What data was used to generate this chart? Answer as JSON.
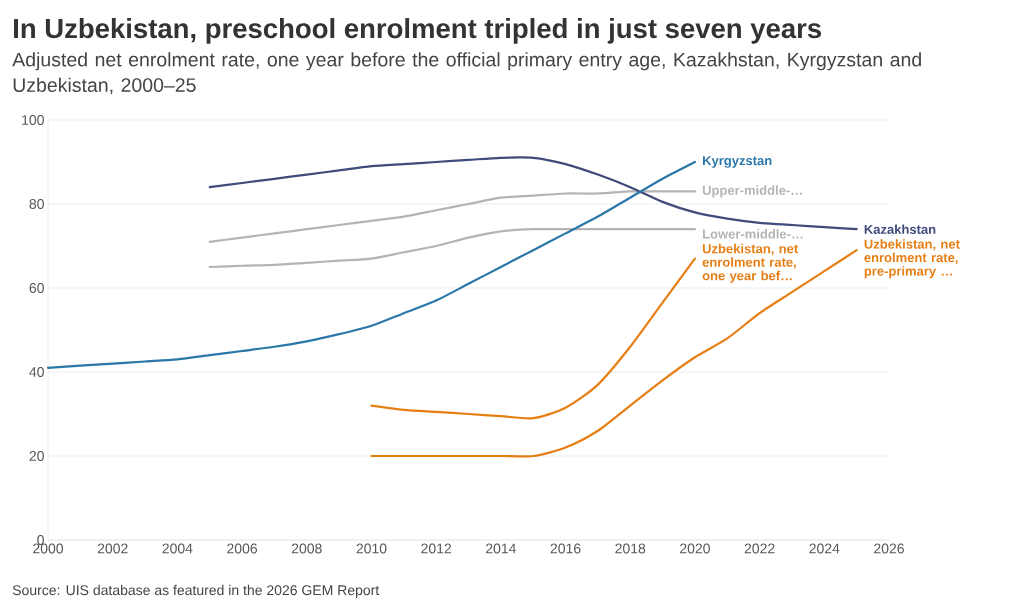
{
  "chart_data": {
    "type": "line",
    "title": "In Uzbekistan, preschool enrolment tripled in just seven years",
    "subtitle": "Adjusted net enrolment rate, one year before the official primary entry age, Kazakhstan, Kyrgyzstan and Uzbekistan, 2000–25",
    "annotations": [
      "Source: UIS database as featured in the 2026 GEM Report"
    ],
    "xlim": [
      2000,
      2026
    ],
    "xticks": [
      2000,
      2002,
      2004,
      2006,
      2008,
      2010,
      2012,
      2014,
      2016,
      2018,
      2020,
      2022,
      2024,
      2026
    ],
    "ylim": [
      0,
      100
    ],
    "yticks": [
      0,
      20,
      40,
      60,
      80,
      100
    ],
    "grid": "y",
    "series": [
      {
        "name": "Upper-middle-…",
        "color": "#b4b4b4",
        "x": [
          2005,
          2006,
          2007,
          2008,
          2009,
          2010,
          2011,
          2012,
          2013,
          2014,
          2015,
          2016,
          2017,
          2018,
          2019,
          2020
        ],
        "values": [
          71,
          72,
          73,
          74,
          75,
          76,
          77,
          78.5,
          80,
          81.5,
          82,
          82.5,
          82.5,
          83,
          83,
          83
        ]
      },
      {
        "name": "Lower-middle-…",
        "color": "#b4b4b4",
        "x": [
          2005,
          2006,
          2007,
          2008,
          2009,
          2010,
          2011,
          2012,
          2013,
          2014,
          2015,
          2016,
          2017,
          2018,
          2019,
          2020
        ],
        "values": [
          65,
          65.3,
          65.5,
          66,
          66.5,
          67,
          68.5,
          70,
          72,
          73.5,
          74,
          74,
          74,
          74,
          74,
          74
        ]
      },
      {
        "name": "Kazakhstan",
        "color": "#404a7b",
        "x": [
          2005,
          2006,
          2007,
          2008,
          2009,
          2010,
          2011,
          2012,
          2013,
          2014,
          2015,
          2016,
          2017,
          2018,
          2019,
          2020,
          2021,
          2022,
          2023,
          2024,
          2025
        ],
        "values": [
          84,
          85,
          86,
          87,
          88,
          89,
          89.5,
          90,
          90.5,
          91,
          91,
          89.5,
          87,
          84,
          80.5,
          78,
          76.5,
          75.5,
          75,
          74.5,
          74
        ]
      },
      {
        "name": "Kyrgyzstan",
        "color": "#2a77a8",
        "x": [
          2000,
          2001,
          2002,
          2003,
          2004,
          2005,
          2006,
          2007,
          2008,
          2009,
          2010,
          2011,
          2012,
          2013,
          2014,
          2015,
          2016,
          2017,
          2018,
          2019,
          2020
        ],
        "values": [
          41,
          41.5,
          42,
          42.5,
          43,
          44,
          45,
          46,
          47.3,
          49,
          51,
          54,
          57,
          61,
          65,
          69,
          73,
          77,
          81.5,
          86,
          90
        ]
      },
      {
        "name": "Uzbekistan, net enrolment rate, one year bef…",
        "color": "#e67e14",
        "x": [
          2010,
          2011,
          2012,
          2013,
          2014,
          2015,
          2016,
          2017,
          2018,
          2019,
          2020
        ],
        "values": [
          32,
          31,
          30.5,
          30,
          29.5,
          29,
          31.5,
          37,
          46,
          56.5,
          67
        ]
      },
      {
        "name": "Uzbekistan, net enrolment rate, pre-primary …",
        "color": "#e67e14",
        "x": [
          2010,
          2011,
          2012,
          2013,
          2014,
          2015,
          2016,
          2017,
          2018,
          2019,
          2020,
          2021,
          2022,
          2023,
          2024,
          2025
        ],
        "values": [
          20,
          20,
          20,
          20,
          20,
          20,
          22,
          26,
          32,
          38,
          43.5,
          48,
          54,
          59,
          64,
          69
        ]
      }
    ]
  }
}
